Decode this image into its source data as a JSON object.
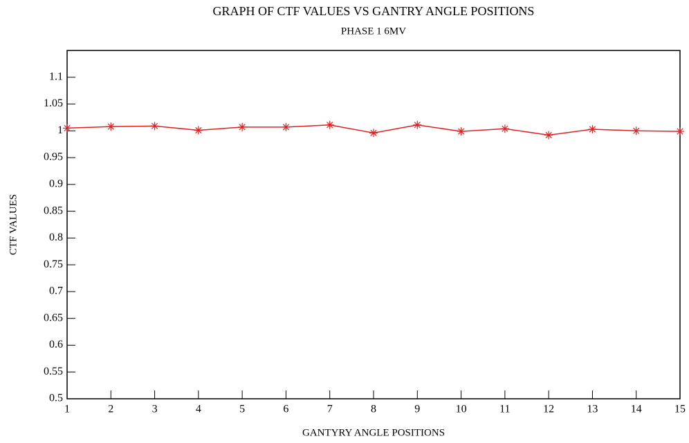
{
  "chart_data": {
    "type": "line",
    "title": "GRAPH OF CTF VALUES VS GANTRY ANGLE POSITIONS",
    "subtitle": "PHASE 1 6MV",
    "x_label": "GANTYRY ANGLE POSITIONS",
    "y_label": "CTF VALUES",
    "x": [
      1,
      2,
      3,
      4,
      5,
      6,
      7,
      8,
      9,
      10,
      11,
      12,
      13,
      14,
      15
    ],
    "series": [
      {
        "name": "CTF",
        "color": "#e02020",
        "values": [
          1.005,
          1.008,
          1.009,
          1.001,
          1.007,
          1.007,
          1.011,
          0.996,
          1.011,
          0.999,
          1.004,
          0.992,
          1.003,
          1.0,
          0.999
        ]
      }
    ],
    "xlim": [
      1,
      15
    ],
    "xticks": [
      1,
      2,
      3,
      4,
      5,
      6,
      7,
      8,
      9,
      10,
      11,
      12,
      13,
      14,
      15
    ],
    "ylim": [
      0.5,
      1.15
    ],
    "yticks": [
      0.5,
      0.55,
      0.6,
      0.65,
      0.7,
      0.75,
      0.8,
      0.85,
      0.9,
      0.95,
      1,
      1.05,
      1.1
    ],
    "grid": false
  }
}
